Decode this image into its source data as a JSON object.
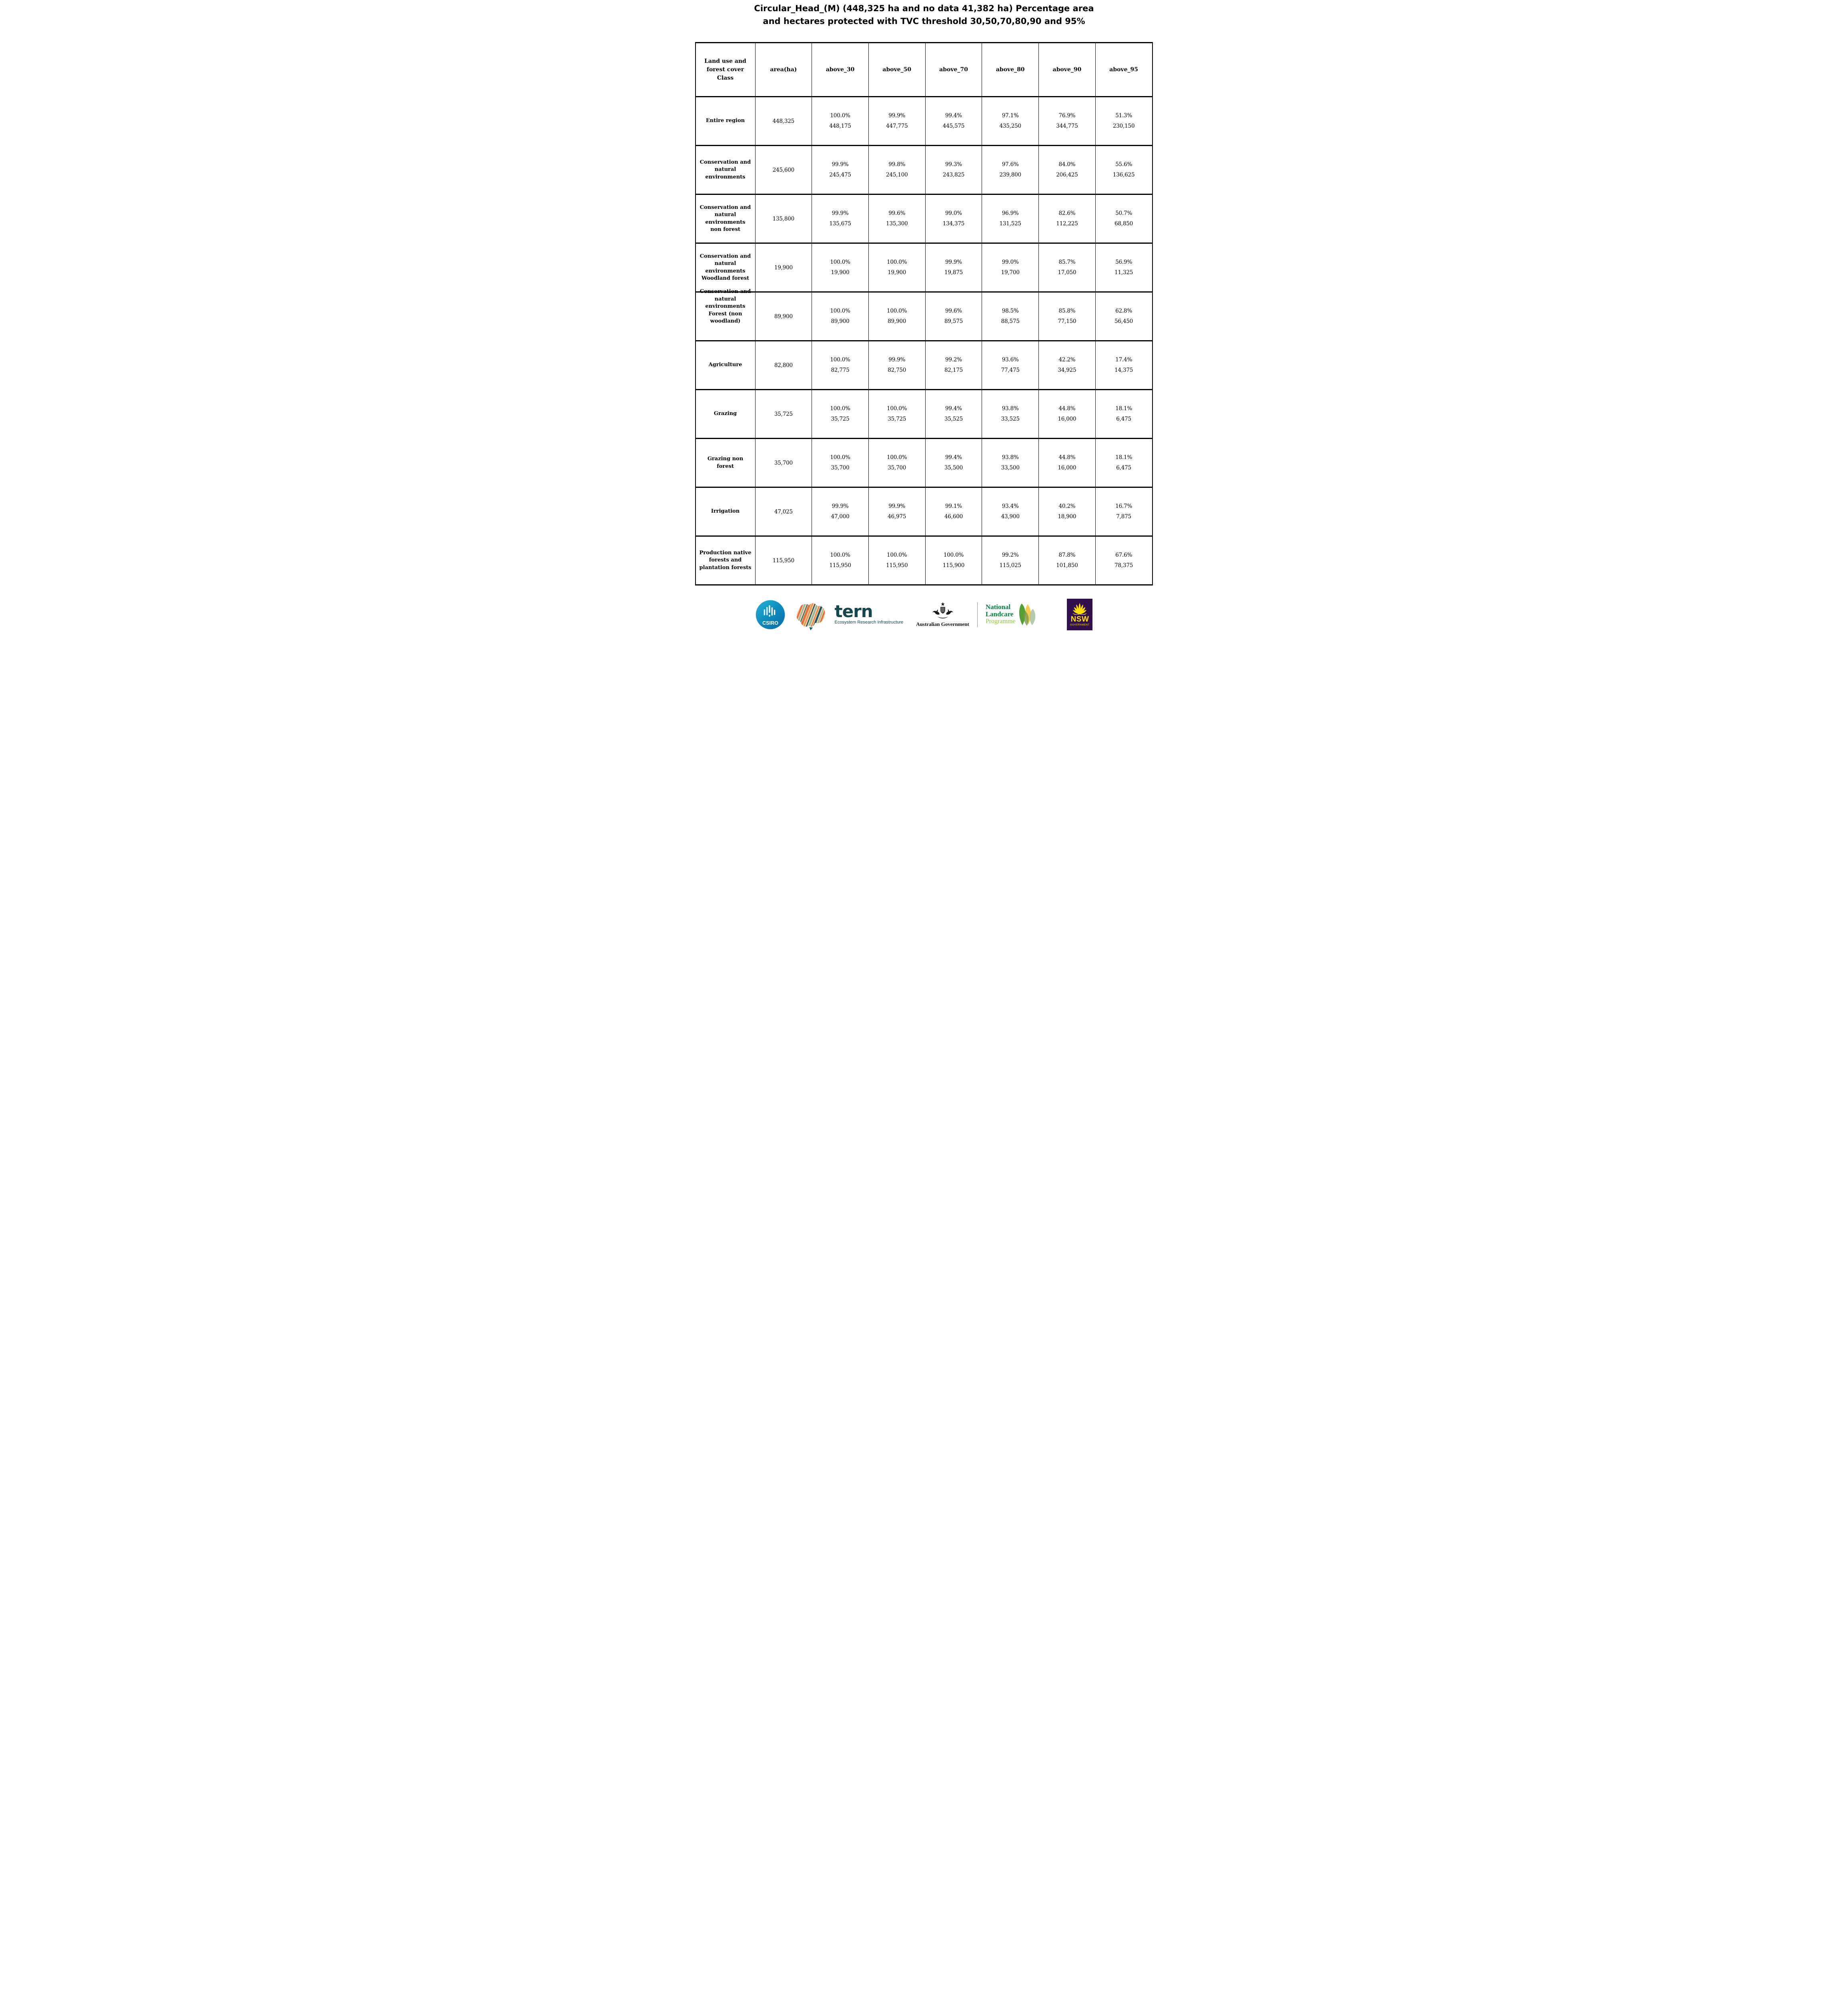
{
  "title": {
    "line1": "Circular_Head_(M) (448,325 ha and no data 41,382 ha) Percentage area",
    "line2": "and hectares protected with TVC threshold 30,50,70,80,90 and 95%"
  },
  "table": {
    "columns": [
      "Land use and forest cover Class",
      "area(ha)",
      "above_30",
      "above_50",
      "above_70",
      "above_80",
      "above_90",
      "above_95"
    ],
    "rows": [
      {
        "label": "Entire region",
        "area": "448,325",
        "cells": [
          [
            "100.0%",
            "448,175"
          ],
          [
            "99.9%",
            "447,775"
          ],
          [
            "99.4%",
            "445,575"
          ],
          [
            "97.1%",
            "435,250"
          ],
          [
            "76.9%",
            "344,775"
          ],
          [
            "51.3%",
            "230,150"
          ]
        ]
      },
      {
        "label": "Conservation and natural environments",
        "area": "245,600",
        "cells": [
          [
            "99.9%",
            "245,475"
          ],
          [
            "99.8%",
            "245,100"
          ],
          [
            "99.3%",
            "243,825"
          ],
          [
            "97.6%",
            "239,800"
          ],
          [
            "84.0%",
            "206,425"
          ],
          [
            "55.6%",
            "136,625"
          ]
        ]
      },
      {
        "label": "Conservation and natural environments non forest",
        "area": "135,800",
        "cells": [
          [
            "99.9%",
            "135,675"
          ],
          [
            "99.6%",
            "135,300"
          ],
          [
            "99.0%",
            "134,375"
          ],
          [
            "96.9%",
            "131,525"
          ],
          [
            "82.6%",
            "112,225"
          ],
          [
            "50.7%",
            "68,850"
          ]
        ]
      },
      {
        "label": "Conservation and natural environments Woodland forest",
        "area": "19,900",
        "cells": [
          [
            "100.0%",
            "19,900"
          ],
          [
            "100.0%",
            "19,900"
          ],
          [
            "99.9%",
            "19,875"
          ],
          [
            "99.0%",
            "19,700"
          ],
          [
            "85.7%",
            "17,050"
          ],
          [
            "56.9%",
            "11,325"
          ]
        ]
      },
      {
        "label": "Conservation and natural environments Forest (non woodland)",
        "area": "89,900",
        "cells": [
          [
            "100.0%",
            "89,900"
          ],
          [
            "100.0%",
            "89,900"
          ],
          [
            "99.6%",
            "89,575"
          ],
          [
            "98.5%",
            "88,575"
          ],
          [
            "85.8%",
            "77,150"
          ],
          [
            "62.8%",
            "56,450"
          ]
        ]
      },
      {
        "label": "Agriculture",
        "area": "82,800",
        "cells": [
          [
            "100.0%",
            "82,775"
          ],
          [
            "99.9%",
            "82,750"
          ],
          [
            "99.2%",
            "82,175"
          ],
          [
            "93.6%",
            "77,475"
          ],
          [
            "42.2%",
            "34,925"
          ],
          [
            "17.4%",
            "14,375"
          ]
        ]
      },
      {
        "label": "Grazing",
        "area": "35,725",
        "cells": [
          [
            "100.0%",
            "35,725"
          ],
          [
            "100.0%",
            "35,725"
          ],
          [
            "99.4%",
            "35,525"
          ],
          [
            "93.8%",
            "33,525"
          ],
          [
            "44.8%",
            "16,000"
          ],
          [
            "18.1%",
            "6,475"
          ]
        ]
      },
      {
        "label": "Grazing non forest",
        "area": "35,700",
        "cells": [
          [
            "100.0%",
            "35,700"
          ],
          [
            "100.0%",
            "35,700"
          ],
          [
            "99.4%",
            "35,500"
          ],
          [
            "93.8%",
            "33,500"
          ],
          [
            "44.8%",
            "16,000"
          ],
          [
            "18.1%",
            "6,475"
          ]
        ]
      },
      {
        "label": "Irrigation",
        "area": "47,025",
        "cells": [
          [
            "99.9%",
            "47,000"
          ],
          [
            "99.9%",
            "46,975"
          ],
          [
            "99.1%",
            "46,600"
          ],
          [
            "93.4%",
            "43,900"
          ],
          [
            "40.2%",
            "18,900"
          ],
          [
            "16.7%",
            "7,875"
          ]
        ]
      },
      {
        "label": "Production native forests and plantation forests",
        "area": "115,950",
        "cells": [
          [
            "100.0%",
            "115,950"
          ],
          [
            "100.0%",
            "115,950"
          ],
          [
            "100.0%",
            "115,900"
          ],
          [
            "99.2%",
            "115,025"
          ],
          [
            "87.8%",
            "101,850"
          ],
          [
            "67.6%",
            "78,375"
          ]
        ]
      }
    ]
  },
  "footer": {
    "csiro": {
      "label": "CSIRO"
    },
    "tern": {
      "wordmark": "tern",
      "subtitle": "Ecosystem Research Infrastructure"
    },
    "australian_government": {
      "label": "Australian Government"
    },
    "landcare": {
      "line1": "National",
      "line2": "Landcare",
      "line3": "Programme"
    },
    "nsw": {
      "label": "NSW",
      "sublabel": "GOVERNMENT"
    },
    "colors": {
      "csiro_blue_top": "#27b3d4",
      "csiro_blue_bottom": "#0a6da8",
      "tern_teal": "#16474f",
      "tern_orange": "#e76f3c",
      "tern_peach": "#f6cfa4",
      "tern_sage": "#8ab8a4",
      "landcare_green": "#00843d",
      "landcare_light_green": "#8dc63f",
      "nsw_purple": "#32104e",
      "nsw_yellow": "#ffe100",
      "crest_black": "#1a1a1a",
      "table_border": "#000000"
    }
  }
}
